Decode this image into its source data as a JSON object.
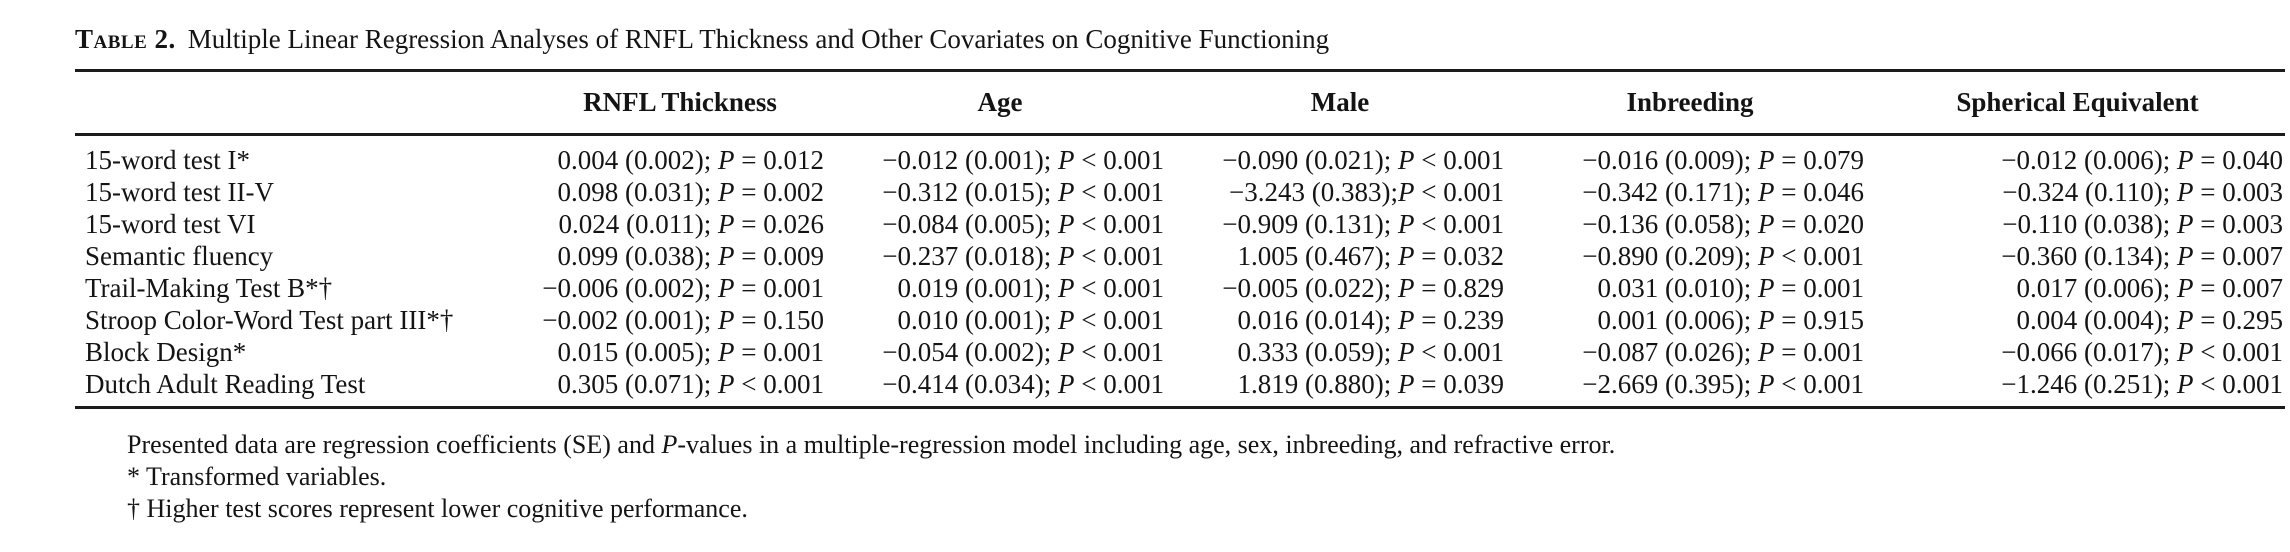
{
  "page": {
    "title_label": "Table 2.",
    "title_text": "Multiple Linear Regression Analyses of RNFL Thickness and Other Covariates on Cognitive Functioning"
  },
  "table": {
    "headers": [
      "",
      "RNFL Thickness",
      "Age",
      "Male",
      "Inbreeding",
      "Spherical Equivalent"
    ],
    "rows": [
      {
        "label": "15-word test I*",
        "values": [
          "0.004 (0.002); P = 0.012",
          "−0.012 (0.001); P < 0.001",
          "−0.090 (0.021); P < 0.001",
          "−0.016 (0.009); P = 0.079",
          "−0.012 (0.006); P = 0.040"
        ]
      },
      {
        "label": "15-word test II-V",
        "values": [
          "0.098 (0.031); P = 0.002",
          "−0.312 (0.015); P < 0.001",
          "−3.243 (0.383);P < 0.001",
          "−0.342 (0.171); P = 0.046",
          "−0.324 (0.110); P = 0.003"
        ]
      },
      {
        "label": "15-word test VI",
        "values": [
          "0.024 (0.011); P = 0.026",
          "−0.084 (0.005); P < 0.001",
          "−0.909 (0.131); P < 0.001",
          "−0.136 (0.058); P = 0.020",
          "−0.110 (0.038); P = 0.003"
        ]
      },
      {
        "label": "Semantic fluency",
        "values": [
          "0.099 (0.038); P = 0.009",
          "−0.237 (0.018); P < 0.001",
          "1.005 (0.467); P = 0.032",
          "−0.890 (0.209); P < 0.001",
          "−0.360 (0.134); P = 0.007"
        ]
      },
      {
        "label": "Trail-Making Test B*†",
        "values": [
          "−0.006 (0.002); P = 0.001",
          "0.019 (0.001); P < 0.001",
          "−0.005 (0.022); P = 0.829",
          "0.031 (0.010); P = 0.001",
          "0.017 (0.006); P = 0.007"
        ]
      },
      {
        "label": "Stroop Color-Word Test part III*†",
        "values": [
          "−0.002 (0.001); P = 0.150",
          "0.010 (0.001); P < 0.001",
          "0.016 (0.014); P = 0.239",
          "0.001 (0.006); P = 0.915",
          "0.004 (0.004); P = 0.295"
        ]
      },
      {
        "label": "Block Design*",
        "values": [
          "0.015 (0.005); P = 0.001",
          "−0.054 (0.002); P < 0.001",
          "0.333 (0.059); P < 0.001",
          "−0.087 (0.026); P = 0.001",
          "−0.066 (0.017); P < 0.001"
        ]
      },
      {
        "label": "Dutch Adult Reading Test",
        "values": [
          "0.305 (0.071); P < 0.001",
          "−0.414 (0.034); P < 0.001",
          "1.819 (0.880); P = 0.039",
          "−2.669 (0.395); P < 0.001",
          "−1.246 (0.251); P < 0.001"
        ]
      }
    ]
  },
  "footnotes": [
    "Presented data are regression coefficients (SE) and P-values in a multiple-regression model including age, sex, inbreeding, and refractive error.",
    "* Transformed variables.",
    "† Higher test scores represent lower cognitive performance."
  ]
}
